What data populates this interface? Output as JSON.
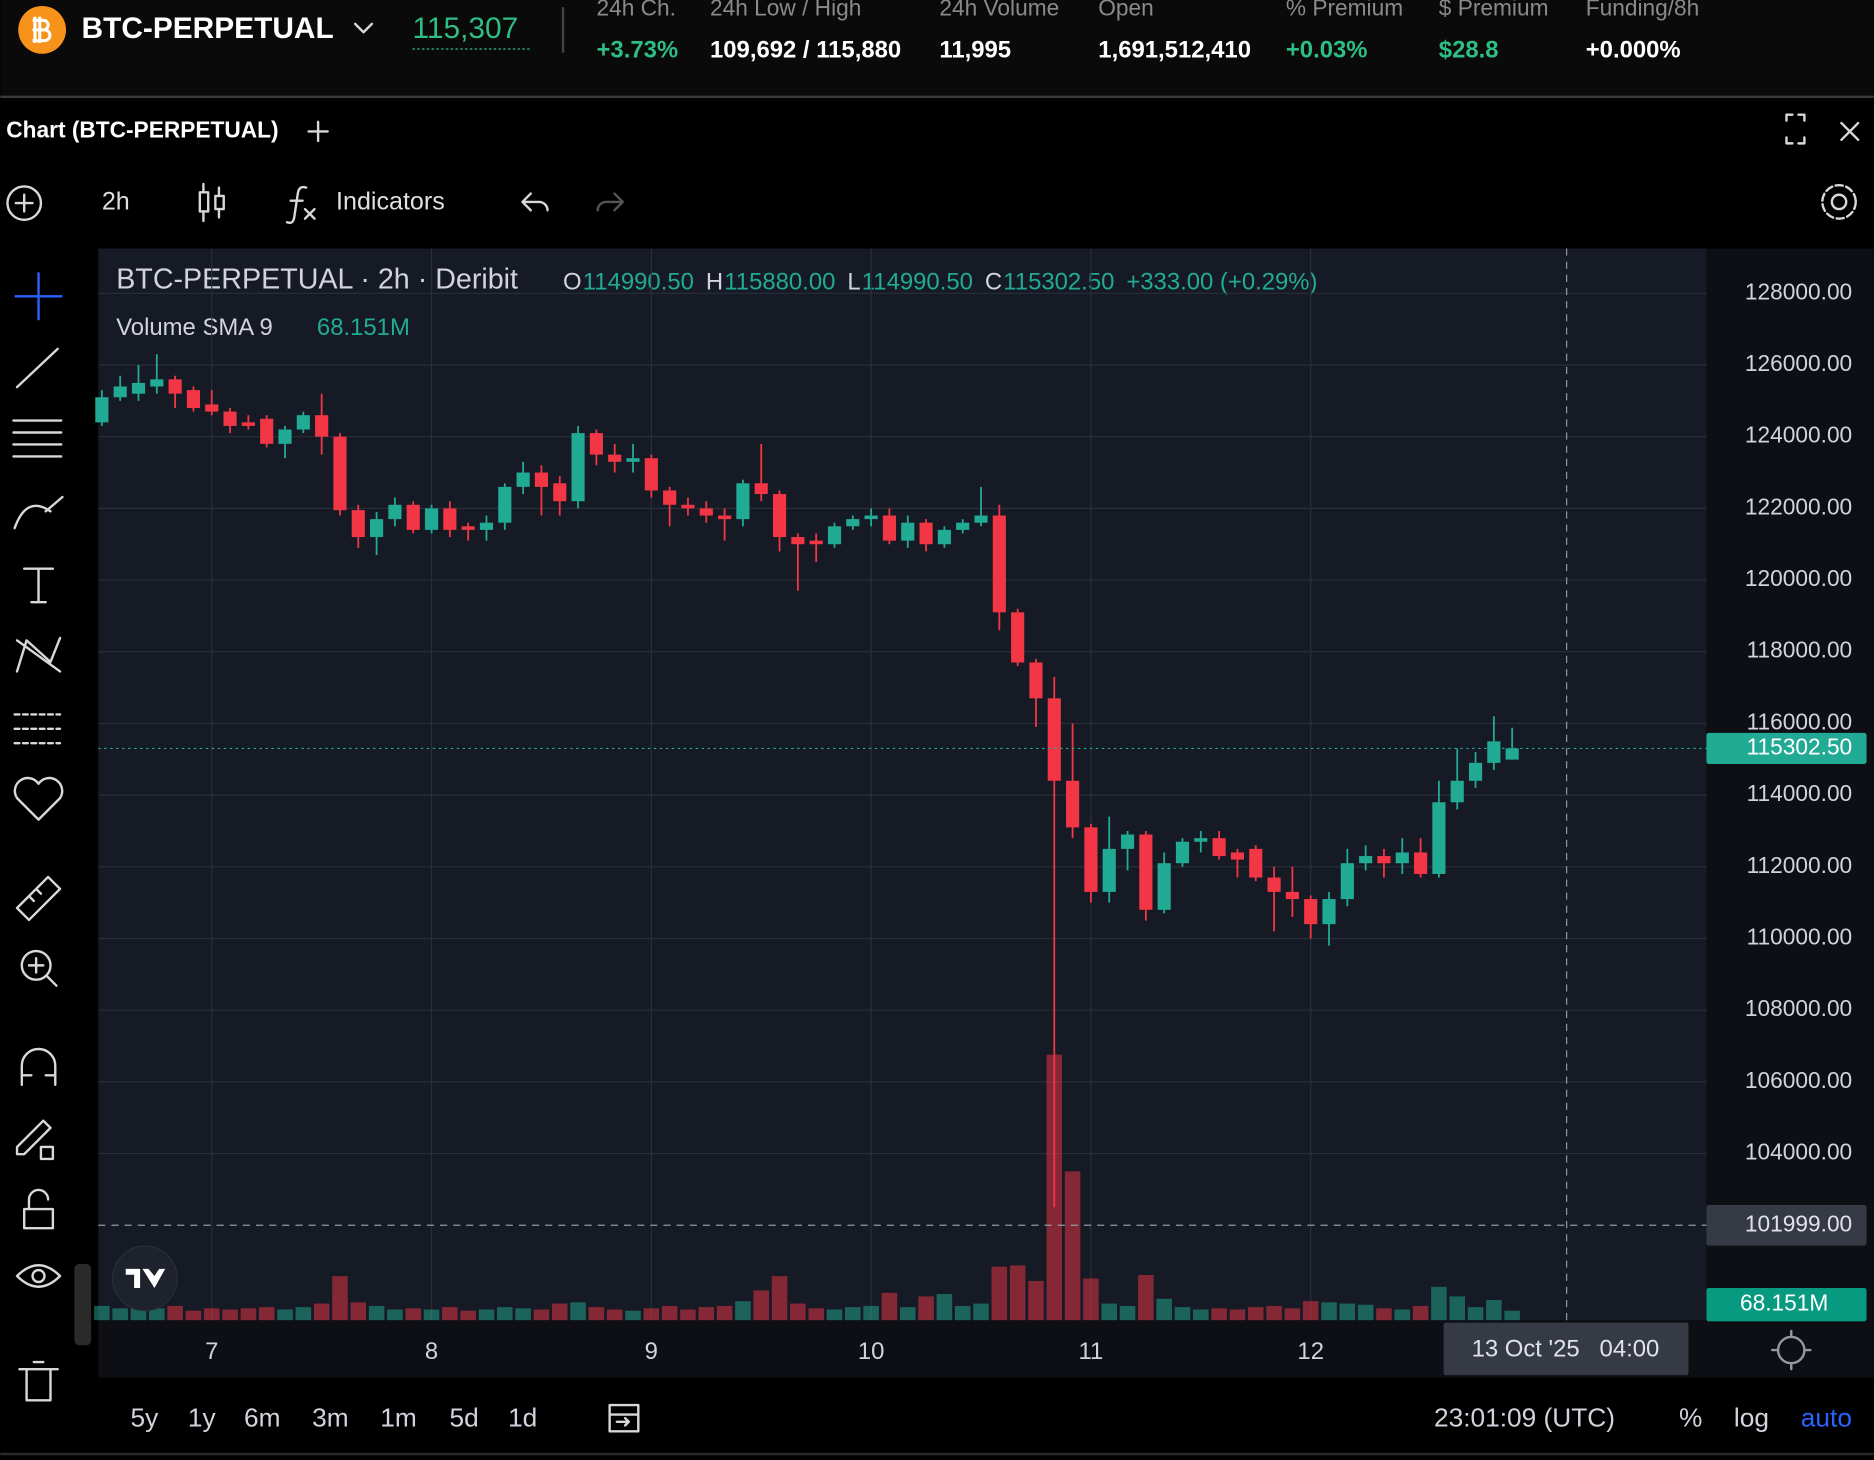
{
  "header": {
    "symbol": "BTC-PERPETUAL",
    "price": "115,307",
    "stats": [
      {
        "label": "24h Ch.",
        "value": "+3.73%"
      },
      {
        "label": "24h Low / High",
        "value": "109,692 / 115,880"
      },
      {
        "label": "24h Volume",
        "value": "11,995"
      },
      {
        "label": "Open",
        "value": "1,691,512,410"
      },
      {
        "label": "% Premium",
        "value": "+0.03%"
      },
      {
        "label": "$ Premium",
        "value": "$28.8"
      },
      {
        "label": "Funding/8h",
        "value": "+0.000%"
      }
    ]
  },
  "panel": {
    "title": "Chart (BTC-PERPETUAL)"
  },
  "toolbar": {
    "interval": "2h",
    "indicators": "Indicators"
  },
  "chart_data": {
    "type": "candlestick",
    "title": "BTC-PERPETUAL · 2h · Deribit",
    "ohlc_legend": [
      {
        "key": "O",
        "value": "114990.50"
      },
      {
        "key": "H",
        "value": "115880.00"
      },
      {
        "key": "L",
        "value": "114990.50"
      },
      {
        "key": "C",
        "value": "115302.50"
      }
    ],
    "change": "+333.00 (+0.29%)",
    "volume_legend": {
      "name": "Volume SMA 9",
      "value": "68.151M"
    },
    "up_color": "#22ab94",
    "down_color": "#f23645",
    "categories": [
      null,
      null,
      null,
      null,
      null,
      null,
      "7",
      null,
      null,
      null,
      null,
      null,
      null,
      null,
      null,
      null,
      null,
      null,
      "8",
      null,
      null,
      null,
      null,
      null,
      null,
      null,
      null,
      null,
      null,
      null,
      "9",
      null,
      null,
      null,
      null,
      null,
      null,
      null,
      null,
      null,
      null,
      null,
      "10",
      null,
      null,
      null,
      null,
      null,
      null,
      null,
      null,
      null,
      null,
      null,
      "11",
      null,
      null,
      null,
      null,
      null,
      null,
      null,
      null,
      null,
      null,
      null,
      "12",
      null,
      null,
      null,
      null,
      null,
      null,
      null,
      null,
      null,
      null,
      null
    ],
    "open": [
      124400,
      125100,
      125200,
      125400,
      125600,
      125300,
      124900,
      124700,
      124400,
      124500,
      123800,
      124200,
      124600,
      124000,
      121950,
      121200,
      121700,
      122100,
      121400,
      122000,
      121500,
      121400,
      121600,
      122600,
      123000,
      122700,
      122200,
      124100,
      123500,
      123300,
      123400,
      122500,
      122100,
      122000,
      121800,
      121700,
      122700,
      122400,
      121200,
      121100,
      121000,
      121500,
      121700,
      121800,
      121100,
      121600,
      121000,
      121400,
      121600,
      121800,
      119100,
      117700,
      116700,
      114400,
      113100,
      111300,
      112500,
      112900,
      110800,
      112100,
      112700,
      112800,
      112400,
      112500,
      111700,
      111300,
      111100,
      110400,
      111100,
      112100,
      112300,
      112100,
      112400,
      111800,
      113800,
      114400,
      114900,
      114990.5
    ],
    "high": [
      125300,
      125700,
      126000,
      126300,
      125700,
      125400,
      125300,
      124800,
      124600,
      124600,
      124300,
      124700,
      125200,
      124100,
      122100,
      121900,
      122300,
      122200,
      122100,
      122200,
      121600,
      121800,
      122700,
      123300,
      123200,
      122900,
      124300,
      124200,
      123800,
      123800,
      123500,
      122600,
      122300,
      122200,
      122000,
      122800,
      123800,
      122500,
      121300,
      121300,
      121600,
      121800,
      122000,
      122000,
      121800,
      121700,
      121500,
      121700,
      122600,
      122100,
      119200,
      117800,
      117300,
      116000,
      113200,
      113400,
      113000,
      113000,
      112400,
      112800,
      113000,
      113000,
      112500,
      112600,
      112000,
      112000,
      111200,
      111300,
      112500,
      112600,
      112500,
      112800,
      112800,
      114400,
      115300,
      115200,
      116200,
      115880
    ],
    "low": [
      124300,
      125000,
      125000,
      125200,
      124800,
      124700,
      124600,
      124100,
      124200,
      123700,
      123400,
      124100,
      123500,
      121800,
      120900,
      120700,
      121500,
      121300,
      121300,
      121200,
      121100,
      121100,
      121400,
      122400,
      121800,
      121800,
      122000,
      123200,
      123000,
      123000,
      122300,
      121500,
      121800,
      121600,
      121100,
      121500,
      122200,
      120800,
      119700,
      120500,
      120900,
      121400,
      121500,
      121000,
      120900,
      120800,
      120900,
      121300,
      121500,
      118600,
      117600,
      115900,
      102500,
      112800,
      111000,
      111000,
      111900,
      110500,
      110700,
      112000,
      112400,
      112200,
      111700,
      111600,
      110200,
      110600,
      110000,
      109800,
      110900,
      111900,
      111700,
      111800,
      111700,
      111700,
      113600,
      114200,
      114700,
      114990.5
    ],
    "close": [
      125100,
      125400,
      125500,
      125600,
      125200,
      124800,
      124700,
      124300,
      124300,
      123800,
      124200,
      124600,
      124000,
      121950,
      121200,
      121700,
      122100,
      121400,
      122000,
      121400,
      121400,
      121600,
      122600,
      123000,
      122600,
      122200,
      124100,
      123500,
      123300,
      123400,
      122500,
      122100,
      122000,
      121800,
      121700,
      122700,
      122400,
      121200,
      121000,
      121000,
      121500,
      121700,
      121800,
      121100,
      121600,
      121000,
      121400,
      121600,
      121800,
      119100,
      117700,
      116700,
      114400,
      113100,
      111300,
      112500,
      112900,
      110800,
      112100,
      112700,
      112800,
      112300,
      112200,
      111700,
      111300,
      111100,
      110400,
      111100,
      112100,
      112300,
      112100,
      112400,
      111800,
      113800,
      114400,
      114900,
      115500,
      115302.5
    ],
    "volume": [
      60,
      50,
      55,
      50,
      60,
      40,
      50,
      45,
      50,
      55,
      45,
      55,
      70,
      185,
      75,
      60,
      45,
      50,
      45,
      55,
      40,
      45,
      55,
      50,
      45,
      70,
      75,
      55,
      45,
      40,
      50,
      60,
      45,
      55,
      60,
      80,
      125,
      185,
      70,
      50,
      45,
      55,
      60,
      115,
      55,
      100,
      110,
      60,
      70,
      225,
      230,
      165,
      1115,
      625,
      175,
      70,
      60,
      190,
      90,
      55,
      45,
      50,
      45,
      55,
      60,
      50,
      80,
      75,
      70,
      65,
      50,
      45,
      60,
      140,
      100,
      55,
      85,
      40
    ],
    "volume_ylim": [
      0,
      4500
    ],
    "ylim": [
      99350,
      129250
    ],
    "yticks": [
      {
        "value": 104000,
        "label": "104000.00"
      },
      {
        "value": 106000,
        "label": "106000.00"
      },
      {
        "value": 108000,
        "label": "108000.00"
      },
      {
        "value": 110000,
        "label": "110000.00"
      },
      {
        "value": 112000,
        "label": "112000.00"
      },
      {
        "value": 114000,
        "label": "114000.00"
      },
      {
        "value": 116000,
        "label": "116000.00"
      },
      {
        "value": 118000,
        "label": "118000.00"
      },
      {
        "value": 120000,
        "label": "120000.00"
      },
      {
        "value": 122000,
        "label": "122000.00"
      },
      {
        "value": 124000,
        "label": "124000.00"
      },
      {
        "value": 126000,
        "label": "126000.00"
      },
      {
        "value": 128000,
        "label": "128000.00"
      }
    ],
    "grid": true,
    "last_price": {
      "value": 115302.5,
      "label": "115302.50"
    },
    "crosshair": {
      "price": {
        "value": 101999,
        "label": "101999.00"
      },
      "time": "13 Oct '25   04:00"
    }
  },
  "footer": {
    "ranges": [
      "5y",
      "1y",
      "6m",
      "3m",
      "1m",
      "5d",
      "1d"
    ],
    "clock": "23:01:09 (UTC)",
    "options": [
      "%",
      "log",
      "auto"
    ]
  }
}
